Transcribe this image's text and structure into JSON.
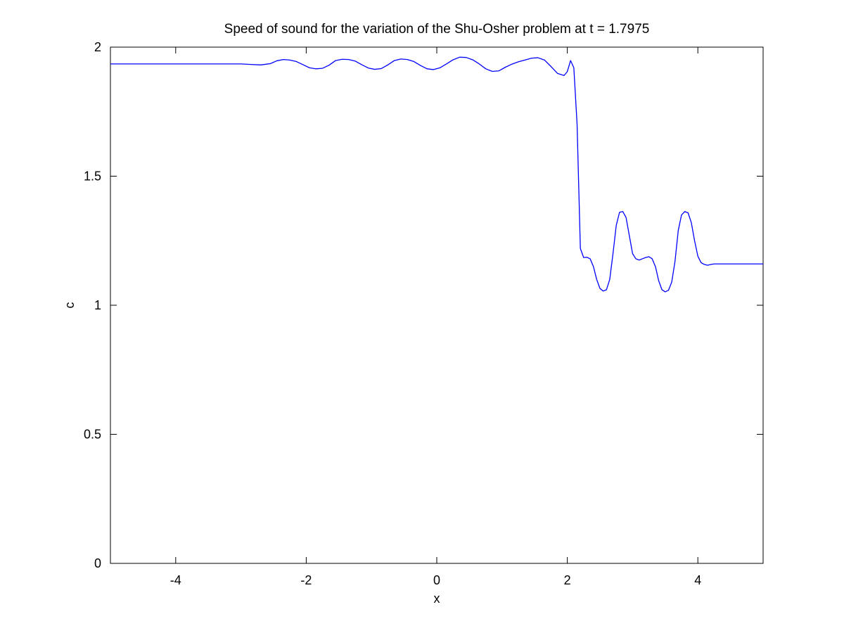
{
  "chart_data": {
    "type": "line",
    "title": "Speed of sound for the variation of the Shu-Osher problem at t = 1.7975",
    "xlabel": "x",
    "ylabel": "c",
    "xlim": [
      -5,
      5
    ],
    "ylim": [
      0,
      2
    ],
    "grid": false,
    "legend": "none",
    "x_ticks": [
      -4,
      -2,
      0,
      2,
      4
    ],
    "x_tick_labels": [
      "-4",
      "-2",
      "0",
      "2",
      "4"
    ],
    "y_ticks": [
      0,
      0.5,
      1,
      1.5,
      2
    ],
    "y_tick_labels": [
      "0",
      "0.5",
      "1",
      "1.5",
      "2"
    ],
    "line_color": "#0000ff",
    "series": [
      {
        "x": [
          -5,
          -4.5,
          -4,
          -3.5,
          -3.0,
          -2.85,
          -2.7,
          -2.55,
          -2.45,
          -2.35,
          -2.25,
          -2.15,
          -2.05,
          -1.95,
          -1.85,
          -1.75,
          -1.65,
          -1.55,
          -1.45,
          -1.35,
          -1.25,
          -1.15,
          -1.05,
          -0.95,
          -0.85,
          -0.75,
          -0.65,
          -0.55,
          -0.45,
          -0.35,
          -0.25,
          -0.15,
          -0.05,
          0.05,
          0.15,
          0.25,
          0.35,
          0.45,
          0.55,
          0.65,
          0.75,
          0.85,
          0.95,
          1.05,
          1.15,
          1.25,
          1.35,
          1.45,
          1.55,
          1.65,
          1.75,
          1.85,
          1.95,
          2.0,
          2.05,
          2.1,
          2.15,
          2.2,
          2.25,
          2.3,
          2.35,
          2.4,
          2.45,
          2.5,
          2.55,
          2.6,
          2.65,
          2.7,
          2.75,
          2.8,
          2.85,
          2.9,
          2.95,
          3.0,
          3.05,
          3.1,
          3.15,
          3.2,
          3.25,
          3.3,
          3.35,
          3.4,
          3.45,
          3.5,
          3.55,
          3.6,
          3.65,
          3.7,
          3.75,
          3.8,
          3.85,
          3.9,
          3.95,
          4.0,
          4.05,
          4.1,
          4.15,
          4.2,
          4.25,
          4.3,
          4.35,
          4.4,
          4.45,
          4.5,
          4.55,
          4.6,
          4.65,
          4.7,
          4.75,
          4.8,
          4.85,
          4.9,
          4.95,
          5.0
        ],
        "y": [
          1.935,
          1.935,
          1.935,
          1.935,
          1.935,
          1.933,
          1.931,
          1.936,
          1.947,
          1.952,
          1.95,
          1.944,
          1.932,
          1.92,
          1.916,
          1.918,
          1.93,
          1.948,
          1.953,
          1.952,
          1.946,
          1.932,
          1.919,
          1.914,
          1.917,
          1.931,
          1.948,
          1.954,
          1.952,
          1.944,
          1.929,
          1.916,
          1.913,
          1.92,
          1.935,
          1.951,
          1.961,
          1.96,
          1.951,
          1.935,
          1.916,
          1.906,
          1.908,
          1.922,
          1.934,
          1.943,
          1.95,
          1.957,
          1.959,
          1.95,
          1.925,
          1.898,
          1.89,
          1.905,
          1.948,
          1.92,
          1.7,
          1.22,
          1.185,
          1.186,
          1.18,
          1.15,
          1.1,
          1.065,
          1.055,
          1.06,
          1.1,
          1.2,
          1.31,
          1.36,
          1.363,
          1.34,
          1.27,
          1.2,
          1.18,
          1.175,
          1.18,
          1.185,
          1.188,
          1.18,
          1.15,
          1.095,
          1.06,
          1.052,
          1.058,
          1.09,
          1.17,
          1.29,
          1.35,
          1.363,
          1.358,
          1.32,
          1.25,
          1.19,
          1.165,
          1.158,
          1.155,
          1.158,
          1.16,
          1.16,
          1.16,
          1.16,
          1.16,
          1.16,
          1.16,
          1.16,
          1.16,
          1.16,
          1.16,
          1.16,
          1.16,
          1.16,
          1.16,
          1.16
        ]
      }
    ]
  }
}
